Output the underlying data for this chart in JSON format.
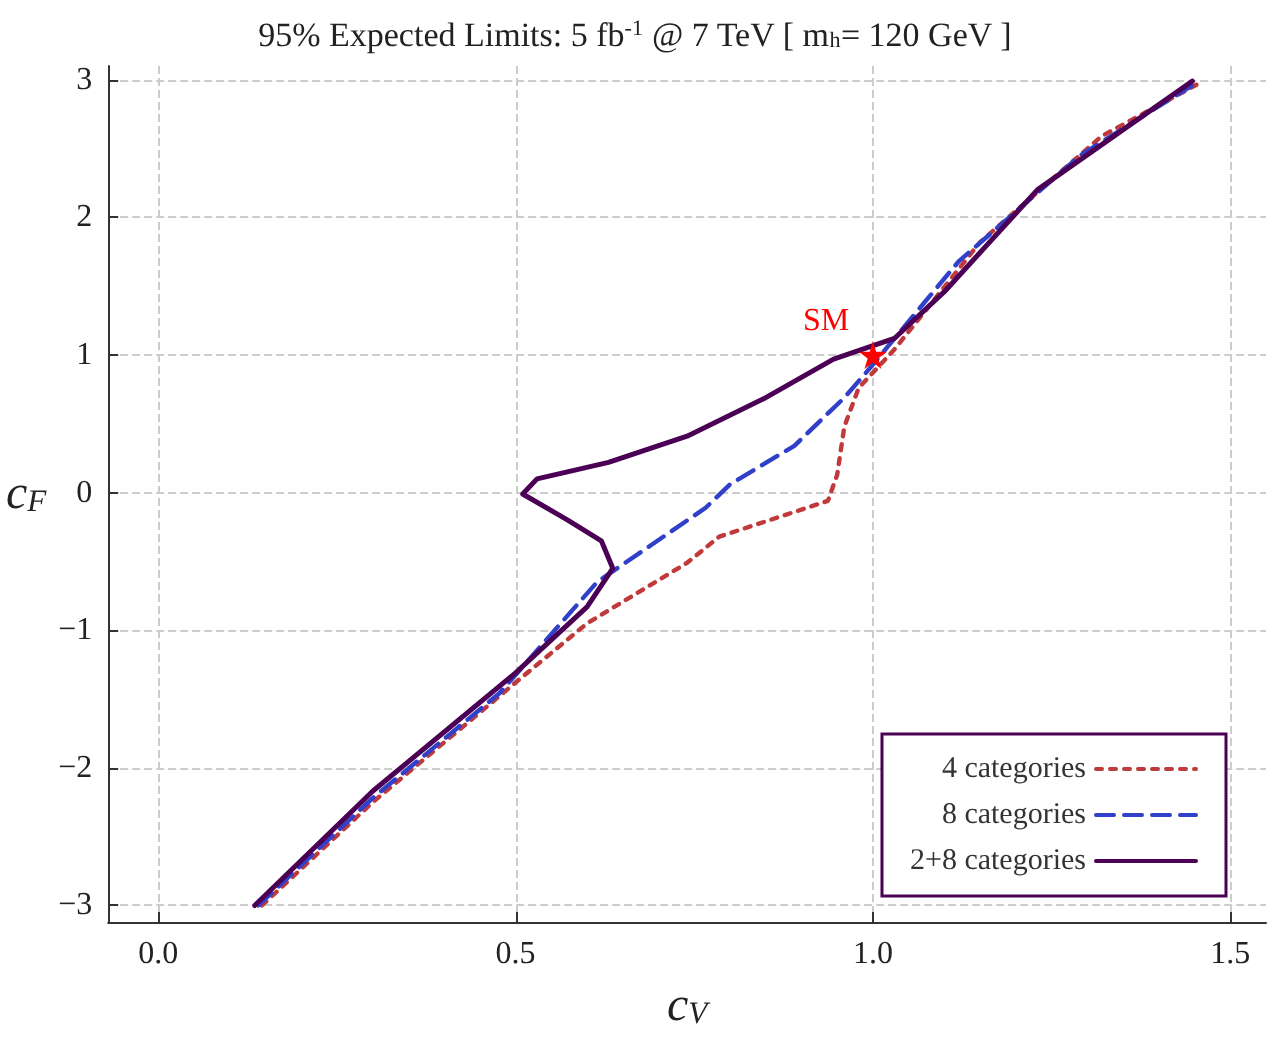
{
  "chart_data": {
    "type": "line",
    "title": "95% Expected Limits: 5 fb$^{-1}$ @ 7 TeV [ m$_{h}$= 120 GeV ]",
    "xlabel": "c$_{V}$",
    "ylabel": "c$_{F}$",
    "xlim": [
      -0.07,
      1.55
    ],
    "xticks": [
      {
        "value": 0,
        "label": "0.0"
      },
      {
        "value": 0.5,
        "label": "0.5"
      },
      {
        "value": 1,
        "label": "1.0"
      },
      {
        "value": 1.5,
        "label": "1.5"
      }
    ],
    "ylim": [
      -3.12,
      3.1
    ],
    "yticks": [
      {
        "value": -3,
        "label": "−3"
      },
      {
        "value": -2,
        "label": "−2"
      },
      {
        "value": -1,
        "label": "−1"
      },
      0,
      1,
      2,
      3
    ],
    "grid": true,
    "legend": "bottom right",
    "marker": "none",
    "annotations": [
      {
        "text": "SM",
        "x": 1,
        "y": 1
      }
    ],
    "series": [
      {
        "name": "4 categories",
        "color": "#c0393b",
        "line_style": "dotted",
        "x": [
          0.145,
          0.3,
          0.5,
          0.6,
          0.74,
          0.785,
          0.937,
          0.95,
          0.96,
          0.98,
          1.03,
          1.15,
          1.32,
          1.455
        ],
        "values": [
          -3.0,
          -2.25,
          -1.38,
          -0.95,
          -0.51,
          -0.32,
          -0.06,
          0.13,
          0.48,
          0.76,
          1.04,
          1.82,
          2.59,
          2.97
        ]
      },
      {
        "name": "8 categories",
        "color": "#3040c8",
        "line_style": "dashed",
        "x": [
          0.14,
          0.3,
          0.477,
          0.614,
          0.766,
          0.78,
          0.8,
          0.89,
          0.96,
          0.99,
          1.12,
          1.29,
          1.45
        ],
        "values": [
          -3.0,
          -2.22,
          -1.46,
          -0.65,
          -0.11,
          -0.04,
          0.06,
          0.34,
          0.69,
          0.87,
          1.68,
          2.45,
          2.97
        ]
      },
      {
        "name": "2+8 categories",
        "color": "#4b0055",
        "line_style": "solid",
        "x": [
          0.135,
          0.3,
          0.5,
          0.6,
          0.636,
          0.62,
          0.573,
          0.51,
          0.53,
          0.63,
          0.74,
          0.85,
          0.945,
          1.03,
          1.1,
          1.23,
          1.447
        ],
        "values": [
          -3.0,
          -2.17,
          -1.31,
          -0.83,
          -0.55,
          -0.35,
          -0.2,
          -0.01,
          0.1,
          0.22,
          0.41,
          0.69,
          0.97,
          1.12,
          1.46,
          2.2,
          2.99
        ]
      }
    ]
  }
}
